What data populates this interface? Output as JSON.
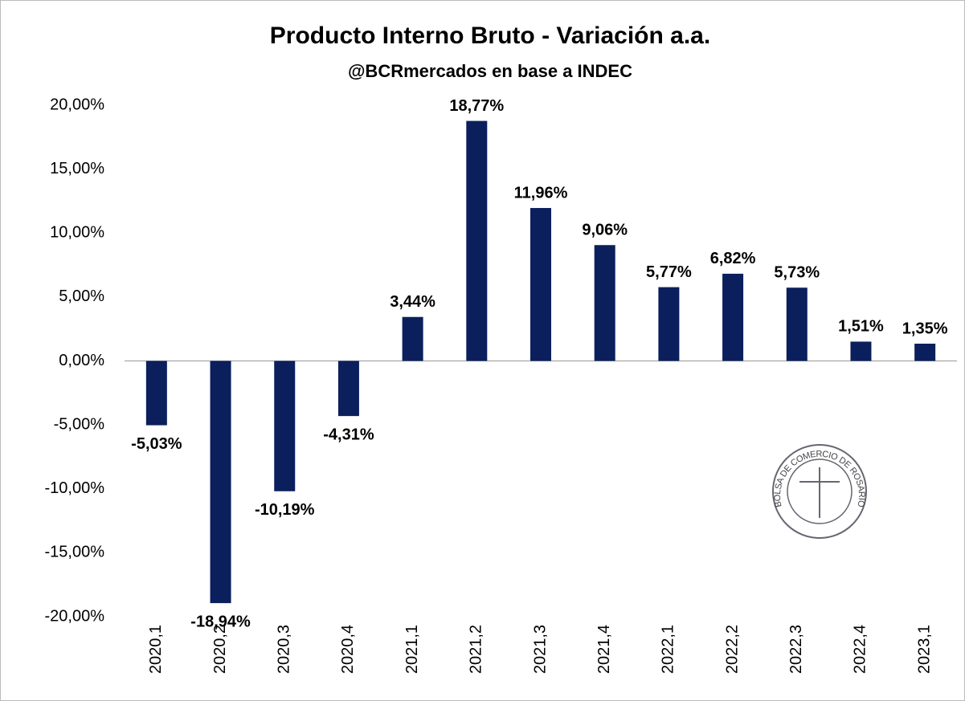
{
  "chart_data": {
    "type": "bar",
    "title": "Producto Interno Bruto - Variación a.a.",
    "subtitle": "@BCRmercados en base a INDEC",
    "annotations": [
      "BOLSA DE COMERCIO DE ROSARIO"
    ],
    "categories": [
      "2020,1",
      "2020,2",
      "2020,3",
      "2020,4",
      "2021,1",
      "2021,2",
      "2021,3",
      "2021,4",
      "2022,1",
      "2022,2",
      "2022,3",
      "2022,4",
      "2023,1"
    ],
    "values": [
      -5.03,
      -18.94,
      -10.19,
      -4.31,
      3.44,
      18.77,
      11.96,
      9.06,
      5.77,
      6.82,
      5.73,
      1.51,
      1.35
    ],
    "value_labels": [
      "-5,03%",
      "-18,94%",
      "-10,19%",
      "-4,31%",
      "3,44%",
      "18,77%",
      "11,96%",
      "9,06%",
      "5,77%",
      "6,82%",
      "5,73%",
      "1,51%",
      "1,35%"
    ],
    "color": "#0b1f5c",
    "ylim": [
      -20,
      20
    ],
    "yticks": [
      {
        "value": -20,
        "label": "-20,00%"
      },
      {
        "value": -15,
        "label": "-15,00%"
      },
      {
        "value": -10,
        "label": "-10,00%"
      },
      {
        "value": -5,
        "label": "-5,00%"
      },
      {
        "value": 0,
        "label": "0,00%"
      },
      {
        "value": 5,
        "label": "5,00%"
      },
      {
        "value": 10,
        "label": "10,00%"
      },
      {
        "value": 15,
        "label": "15,00%"
      },
      {
        "value": 20,
        "label": "20,00%"
      }
    ],
    "grid": false
  }
}
